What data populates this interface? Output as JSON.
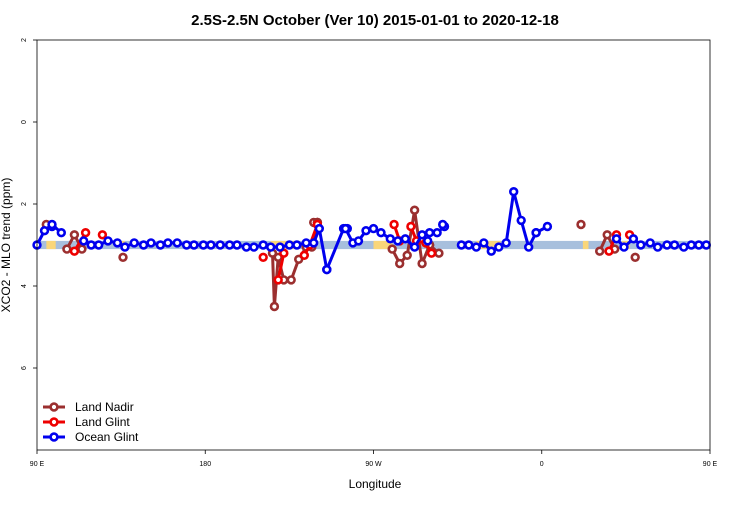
{
  "chart_data": {
    "type": "line",
    "title": "2.5S-2.5N October (Ver 10)   2015-01-01 to 2020-12-18",
    "xlabel": "Longitude",
    "ylabel": "XCO2 - MLO trend (ppm)",
    "xlim": [
      -180,
      180
    ],
    "ylim": [
      -8,
      2
    ],
    "x_ticks": [
      {
        "value": -180,
        "label": "90 E"
      },
      {
        "value": -90,
        "label": "180"
      },
      {
        "value": 0,
        "label": "90 W"
      },
      {
        "value": 90,
        "label": "0"
      },
      {
        "value": 180,
        "label": "90 E"
      },
      {
        "value": 270,
        "label": "180"
      }
    ],
    "y_ticks": [
      {
        "value": 2,
        "label": "2"
      },
      {
        "value": 0,
        "label": "0"
      },
      {
        "value": -2,
        "label": "2"
      },
      {
        "value": -4,
        "label": "4"
      },
      {
        "value": -6,
        "label": "6"
      }
    ],
    "grid": false,
    "legend_position": "bottom-left",
    "band": {
      "y_low": -3.1,
      "y_high": -2.9,
      "color_blue": "#a7bfdd",
      "color_gold": "#f9d67a",
      "gold_segments": [
        [
          -175,
          -170
        ],
        [
          -135,
          -133
        ],
        [
          -55,
          -40
        ],
        [
          0,
          10
        ],
        [
          55,
          68
        ],
        [
          112,
          115
        ],
        [
          133,
          137
        ]
      ]
    },
    "series": [
      {
        "name": "Land Nadir",
        "color": "#9b2f2f",
        "segments": [
          [
            [
              -164,
              -3.1
            ],
            [
              -160,
              -2.75
            ],
            [
              -156,
              -3.1
            ]
          ],
          [
            [
              -134,
              -3.3
            ]
          ],
          [
            [
              -54,
              -3.2
            ],
            [
              -53,
              -4.5
            ],
            [
              -51,
              -3.3
            ],
            [
              -48,
              -3.85
            ],
            [
              -44,
              -3.85
            ],
            [
              -40,
              -3.35
            ],
            [
              -36,
              -3.05
            ],
            [
              -33,
              -3.05
            ],
            [
              -30,
              -2.45
            ]
          ],
          [
            [
              -32,
              -2.45
            ]
          ],
          [
            [
              -30,
              -2.45
            ]
          ],
          [
            [
              -175,
              -2.5
            ]
          ],
          [
            [
              -30,
              -2.45
            ]
          ],
          [
            [
              10,
              -3.1
            ],
            [
              14,
              -3.45
            ],
            [
              18,
              -3.25
            ],
            [
              22,
              -2.15
            ],
            [
              26,
              -3.45
            ],
            [
              30,
              -3.0
            ]
          ],
          [
            [
              30,
              -3.0
            ],
            [
              35,
              -3.2
            ]
          ],
          [
            [
              111,
              -2.5
            ]
          ],
          [
            [
              121,
              -3.15
            ],
            [
              125,
              -2.75
            ],
            [
              129,
              -3.1
            ]
          ],
          [
            [
              140,
              -3.3
            ]
          ]
        ]
      },
      {
        "name": "Land Glint",
        "color": "#ee0000",
        "segments": [
          [
            [
              -160,
              -3.15
            ],
            [
              -154,
              -2.7
            ]
          ],
          [
            [
              -145,
              -2.75
            ]
          ],
          [
            [
              -59,
              -3.3
            ]
          ],
          [
            [
              -51,
              -3.85
            ],
            [
              -48,
              -3.2
            ]
          ],
          [
            [
              -37,
              -3.25
            ],
            [
              -34,
              -3.0
            ],
            [
              -30,
              -2.5
            ]
          ],
          [
            [
              11,
              -2.5
            ],
            [
              14,
              -2.9
            ]
          ],
          [
            [
              20,
              -2.55
            ],
            [
              23,
              -2.9
            ],
            [
              28,
              -2.95
            ],
            [
              31,
              -3.2
            ]
          ],
          [
            [
              126,
              -3.15
            ],
            [
              130,
              -2.75
            ]
          ],
          [
            [
              137,
              -2.75
            ]
          ]
        ]
      },
      {
        "name": "Ocean Glint",
        "color": "#0000ee",
        "segments": [
          [
            [
              -180,
              -3.0
            ],
            [
              -176,
              -2.65
            ],
            [
              -172,
              -2.55
            ]
          ],
          [
            [
              -172,
              -2.5
            ],
            [
              -167,
              -2.7
            ]
          ],
          [
            [
              -155,
              -2.9
            ],
            [
              -151,
              -3.0
            ],
            [
              -147,
              -3.0
            ],
            [
              -142,
              -2.9
            ],
            [
              -137,
              -2.95
            ],
            [
              -133,
              -3.05
            ],
            [
              -128,
              -2.95
            ],
            [
              -123,
              -3.0
            ],
            [
              -119,
              -2.95
            ],
            [
              -114,
              -3.0
            ],
            [
              -110,
              -2.95
            ],
            [
              -105,
              -2.95
            ],
            [
              -100,
              -3.0
            ],
            [
              -96,
              -3.0
            ],
            [
              -91,
              -3.0
            ],
            [
              -87,
              -3.0
            ],
            [
              -82,
              -3.0
            ],
            [
              -77,
              -3.0
            ],
            [
              -73,
              -3.0
            ],
            [
              -68,
              -3.05
            ],
            [
              -64,
              -3.05
            ],
            [
              -59,
              -3.0
            ],
            [
              -55,
              -3.05
            ],
            [
              -50,
              -3.05
            ],
            [
              -45,
              -3.0
            ],
            [
              -41,
              -3.0
            ],
            [
              -36,
              -2.95
            ],
            [
              -32,
              -2.95
            ],
            [
              -29,
              -2.6
            ],
            [
              -25,
              -3.6
            ]
          ],
          [
            [
              -25,
              -3.6
            ],
            [
              -16,
              -2.6
            ],
            [
              -14,
              -2.6
            ]
          ],
          [
            [
              -15,
              -2.6
            ],
            [
              -11,
              -2.95
            ],
            [
              -8,
              -2.9
            ],
            [
              -4,
              -2.65
            ],
            [
              0,
              -2.6
            ],
            [
              4,
              -2.7
            ],
            [
              9,
              -2.85
            ],
            [
              13,
              -2.9
            ],
            [
              17,
              -2.85
            ],
            [
              22,
              -3.05
            ],
            [
              26,
              -2.75
            ],
            [
              30,
              -2.7
            ],
            [
              34,
              -2.7
            ],
            [
              38,
              -2.55
            ]
          ],
          [
            [
              29,
              -2.9
            ]
          ],
          [
            [
              37,
              -2.5
            ]
          ],
          [
            [
              47,
              -3.0
            ],
            [
              51,
              -3.0
            ],
            [
              55,
              -3.05
            ],
            [
              59,
              -2.95
            ],
            [
              63,
              -3.15
            ],
            [
              67,
              -3.05
            ],
            [
              71,
              -2.95
            ],
            [
              75,
              -1.7
            ],
            [
              79,
              -2.4
            ],
            [
              83,
              -3.05
            ],
            [
              87,
              -2.7
            ]
          ],
          [
            [
              87,
              -2.7
            ],
            [
              93,
              -2.55
            ]
          ],
          [
            [
              130,
              -2.85
            ],
            [
              134,
              -3.05
            ],
            [
              139,
              -2.85
            ],
            [
              143,
              -3.0
            ],
            [
              148,
              -2.95
            ],
            [
              152,
              -3.05
            ],
            [
              157,
              -3.0
            ],
            [
              161,
              -3.0
            ],
            [
              166,
              -3.05
            ],
            [
              170,
              -3.0
            ],
            [
              174,
              -3.0
            ],
            [
              178,
              -3.0
            ]
          ]
        ]
      }
    ]
  }
}
